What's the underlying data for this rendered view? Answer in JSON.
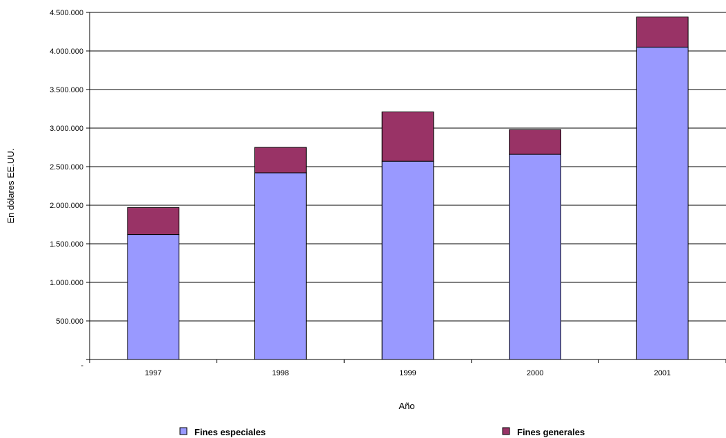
{
  "chart_data": {
    "type": "bar",
    "stacked": true,
    "categories": [
      "1997",
      "1998",
      "1999",
      "2000",
      "2001"
    ],
    "series": [
      {
        "name": "Fines especiales",
        "color": "#9999FF",
        "values": [
          1620000,
          2420000,
          2570000,
          2660000,
          4050000
        ]
      },
      {
        "name": "Fines generales",
        "color": "#993366",
        "values": [
          350000,
          330000,
          640000,
          320000,
          390000
        ]
      }
    ],
    "xlabel": "Año",
    "ylabel": "En dólares EE.UU.",
    "ylim": [
      0,
      4500000
    ],
    "yticks": [
      {
        "value": 0,
        "label": "-"
      },
      {
        "value": 500000,
        "label": "500.000"
      },
      {
        "value": 1000000,
        "label": "1.000.000"
      },
      {
        "value": 1500000,
        "label": "1.500.000"
      },
      {
        "value": 2000000,
        "label": "2.000.000"
      },
      {
        "value": 2500000,
        "label": "2.500.000"
      },
      {
        "value": 3000000,
        "label": "3.000.000"
      },
      {
        "value": 3500000,
        "label": "3.500.000"
      },
      {
        "value": 4000000,
        "label": "4.000.000"
      },
      {
        "value": 4500000,
        "label": "4.500.000"
      }
    ],
    "grid": true,
    "legend": "bottom"
  }
}
